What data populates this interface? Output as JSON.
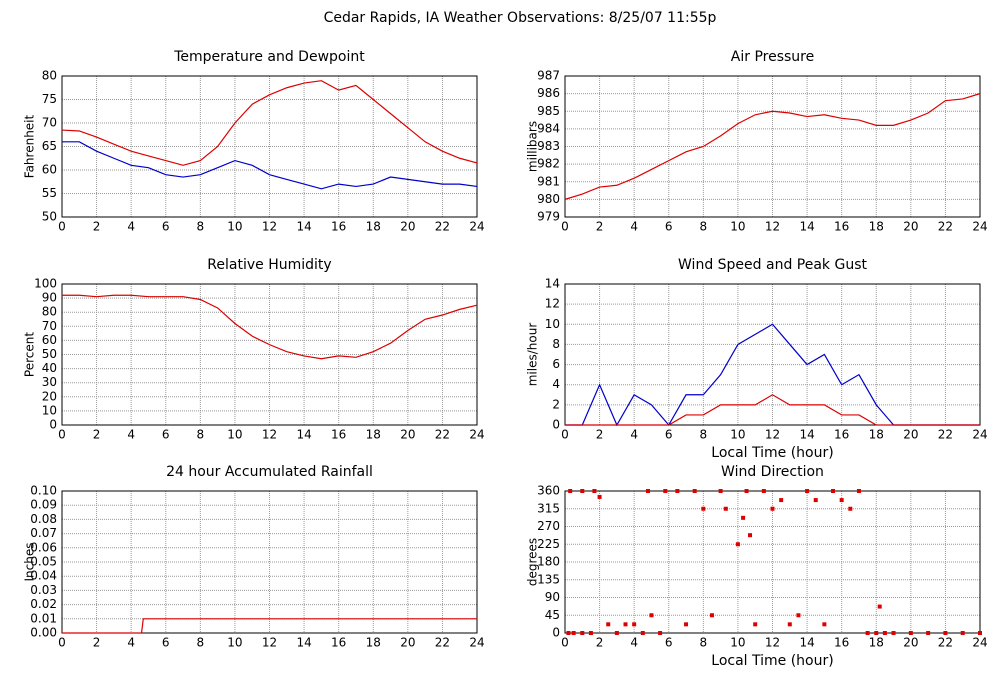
{
  "title": "Cedar Rapids, IA Weather Observations: 8/25/07 11:55p",
  "chart_data": [
    {
      "type": "line",
      "title": "Temperature and Dewpoint",
      "y_label": "Fahrenheit",
      "x": [
        0,
        1,
        2,
        3,
        4,
        5,
        6,
        7,
        8,
        9,
        10,
        11,
        12,
        13,
        14,
        15,
        16,
        17,
        18,
        19,
        20,
        21,
        22,
        23,
        24
      ],
      "series": [
        {
          "color": "#dd0000",
          "values": [
            68.5,
            68.3,
            67,
            65.5,
            64,
            63,
            62,
            61,
            62,
            65,
            70,
            74,
            76,
            77.5,
            78.5,
            79,
            77,
            78,
            75,
            72,
            69,
            66,
            64,
            62.5,
            61.5
          ]
        },
        {
          "color": "#0000cc",
          "values": [
            66,
            66,
            64,
            62.5,
            61,
            60.5,
            59,
            58.5,
            59,
            60.5,
            62,
            61,
            59,
            58,
            57,
            56,
            57,
            56.5,
            57,
            58.5,
            58,
            57.5,
            57,
            57,
            56.5
          ]
        }
      ],
      "xlim": [
        0,
        24
      ],
      "xticks": [
        0,
        2,
        4,
        6,
        8,
        10,
        12,
        14,
        16,
        18,
        20,
        22,
        24
      ],
      "ylim": [
        50,
        80
      ],
      "yticks": [
        50,
        55,
        60,
        65,
        70,
        75,
        80
      ],
      "grid": true
    },
    {
      "type": "line",
      "title": "Air Pressure",
      "y_label": "millibars",
      "x": [
        0,
        1,
        2,
        3,
        4,
        5,
        6,
        7,
        8,
        9,
        10,
        11,
        12,
        13,
        14,
        15,
        16,
        17,
        18,
        19,
        20,
        21,
        22,
        23,
        24
      ],
      "series": [
        {
          "color": "#dd0000",
          "values": [
            980.0,
            980.3,
            980.7,
            980.8,
            981.2,
            981.7,
            982.2,
            982.7,
            983.0,
            983.6,
            984.3,
            984.8,
            985.0,
            984.9,
            984.7,
            984.8,
            984.6,
            984.5,
            984.2,
            984.2,
            984.5,
            984.9,
            985.6,
            985.7,
            986.0
          ]
        }
      ],
      "xlim": [
        0,
        24
      ],
      "xticks": [
        0,
        2,
        4,
        6,
        8,
        10,
        12,
        14,
        16,
        18,
        20,
        22,
        24
      ],
      "ylim": [
        979,
        987
      ],
      "yticks": [
        979,
        980,
        981,
        982,
        983,
        984,
        985,
        986,
        987
      ],
      "grid": true
    },
    {
      "type": "line",
      "title": "Relative Humidity",
      "y_label": "Percent",
      "x": [
        0,
        1,
        2,
        3,
        4,
        5,
        6,
        7,
        8,
        9,
        10,
        11,
        12,
        13,
        14,
        15,
        16,
        17,
        18,
        19,
        20,
        21,
        22,
        23,
        24
      ],
      "series": [
        {
          "color": "#dd0000",
          "values": [
            92,
            92,
            91,
            92,
            92,
            91,
            91,
            91,
            89,
            83,
            72,
            63,
            57,
            52,
            49,
            47,
            49,
            48,
            52,
            58,
            67,
            75,
            78,
            82,
            85
          ]
        }
      ],
      "xlim": [
        0,
        24
      ],
      "xticks": [
        0,
        2,
        4,
        6,
        8,
        10,
        12,
        14,
        16,
        18,
        20,
        22,
        24
      ],
      "ylim": [
        0,
        100
      ],
      "yticks": [
        0,
        10,
        20,
        30,
        40,
        50,
        60,
        70,
        80,
        90,
        100
      ],
      "grid": true
    },
    {
      "type": "line",
      "title": "Wind Speed and Peak Gust",
      "y_label": "miles/hour",
      "x_label": "Local Time (hour)",
      "x": [
        0,
        1,
        2,
        3,
        4,
        5,
        6,
        7,
        8,
        9,
        10,
        11,
        12,
        13,
        14,
        15,
        16,
        17,
        18,
        19,
        20,
        21,
        22,
        23,
        24
      ],
      "series": [
        {
          "color": "#0000cc",
          "values": [
            0,
            0,
            4,
            0,
            3,
            2,
            0,
            3,
            3,
            5,
            8,
            9,
            10,
            8,
            6,
            7,
            4,
            5,
            2,
            0,
            0,
            0,
            0,
            0,
            0
          ]
        },
        {
          "color": "#dd0000",
          "values": [
            0,
            0,
            0,
            0,
            0,
            0,
            0,
            1,
            1,
            2,
            2,
            2,
            3,
            2,
            2,
            2,
            1,
            1,
            0,
            0,
            0,
            0,
            0,
            0,
            0
          ]
        }
      ],
      "xlim": [
        0,
        24
      ],
      "xticks": [
        0,
        2,
        4,
        6,
        8,
        10,
        12,
        14,
        16,
        18,
        20,
        22,
        24
      ],
      "ylim": [
        0,
        14
      ],
      "yticks": [
        0,
        2,
        4,
        6,
        8,
        10,
        12,
        14
      ],
      "grid": true
    },
    {
      "type": "line",
      "title": "24 hour Accumulated Rainfall",
      "y_label": "Inches",
      "x": [
        0,
        4.6,
        4.7,
        24
      ],
      "series": [
        {
          "color": "#dd0000",
          "values": [
            0,
            0,
            0.01,
            0.01
          ]
        }
      ],
      "xlim": [
        0,
        24
      ],
      "xticks": [
        0,
        2,
        4,
        6,
        8,
        10,
        12,
        14,
        16,
        18,
        20,
        22,
        24
      ],
      "ylim": [
        0,
        0.1
      ],
      "yticks": [
        {
          "value": 0,
          "label": "0.00"
        },
        {
          "value": 0.01,
          "label": "0.01"
        },
        {
          "value": 0.02,
          "label": "0.02"
        },
        {
          "value": 0.03,
          "label": "0.03"
        },
        {
          "value": 0.04,
          "label": "0.04"
        },
        {
          "value": 0.05,
          "label": "0.05"
        },
        {
          "value": 0.06,
          "label": "0.06"
        },
        {
          "value": 0.07,
          "label": "0.07"
        },
        {
          "value": 0.08,
          "label": "0.08"
        },
        {
          "value": 0.09,
          "label": "0.09"
        },
        {
          "value": 0.1,
          "label": "0.10"
        }
      ],
      "grid": true
    },
    {
      "type": "scatter",
      "title": "Wind Direction",
      "y_label": "degrees",
      "x_label": "Local Time (hour)",
      "x": [
        0.2,
        0.5,
        1,
        1.5,
        0.3,
        1,
        1.7,
        2,
        2.5,
        3,
        3.5,
        4,
        4.5,
        4.8,
        5,
        5.5,
        5.8,
        6.5,
        7,
        7.5,
        8,
        8.5,
        9,
        9.3,
        10,
        10.3,
        10.5,
        10.7,
        11,
        11.5,
        12,
        12.5,
        13,
        13.5,
        14,
        14.5,
        15,
        15.5,
        16,
        16.5,
        17,
        17.5,
        18,
        18.2,
        18.5,
        19,
        20,
        21,
        22,
        23,
        24
      ],
      "series": [
        {
          "color": "#dd0000",
          "values": [
            0,
            0,
            0,
            0,
            360,
            360,
            360,
            345,
            22,
            0,
            22,
            22,
            0,
            360,
            45,
            0,
            360,
            360,
            22,
            360,
            315,
            45,
            360,
            315,
            225,
            292,
            360,
            248,
            22,
            360,
            315,
            337,
            22,
            45,
            360,
            337,
            22,
            360,
            337,
            315,
            360,
            0,
            0,
            67,
            0,
            0,
            0,
            0,
            0,
            0,
            0
          ]
        }
      ],
      "xlim": [
        0,
        24
      ],
      "xticks": [
        0,
        2,
        4,
        6,
        8,
        10,
        12,
        14,
        16,
        18,
        20,
        22,
        24
      ],
      "ylim": [
        0,
        360
      ],
      "yticks": [
        0,
        45,
        90,
        135,
        180,
        225,
        270,
        315,
        360
      ],
      "grid": true
    }
  ]
}
